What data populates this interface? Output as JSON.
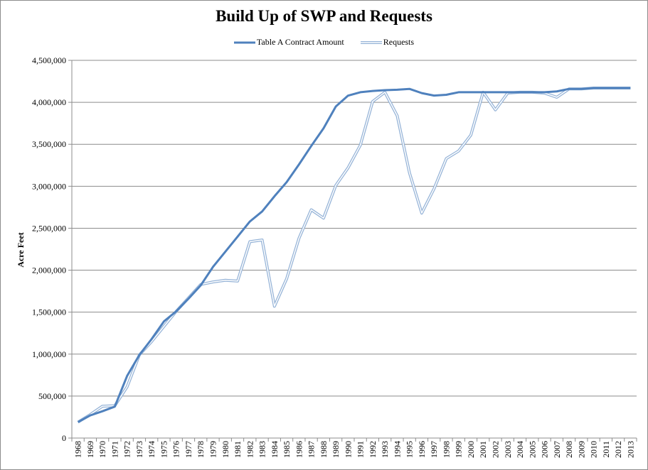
{
  "chart_data": {
    "type": "line",
    "title": "Build Up of SWP and Requests",
    "ylabel": "Acre Feet",
    "xlabel": "",
    "ylim": [
      0,
      4500000
    ],
    "yticks": [
      0,
      500000,
      1000000,
      1500000,
      2000000,
      2500000,
      3000000,
      3500000,
      4000000,
      4500000
    ],
    "ytick_labels": [
      "0",
      "500,000",
      "1,000,000",
      "1,500,000",
      "2,000,000",
      "2,500,000",
      "3,000,000",
      "3,500,000",
      "4,000,000",
      "4,500,000"
    ],
    "grid": true,
    "legend": "top-center",
    "x": [
      "1968",
      "1969",
      "1970",
      "1971",
      "1972",
      "1973",
      "1974",
      "1975",
      "1976",
      "1977",
      "1978",
      "1979",
      "1980",
      "1981",
      "1982",
      "1983",
      "1984",
      "1985",
      "1986",
      "1987",
      "1988",
      "1989",
      "1990",
      "1991",
      "1992",
      "1993",
      "1994",
      "1995",
      "1996",
      "1997",
      "1998",
      "1999",
      "2000",
      "2001",
      "2002",
      "2003",
      "2004",
      "2005",
      "2006",
      "2007",
      "2008",
      "2009",
      "2010",
      "2011",
      "2012",
      "2013"
    ],
    "series": [
      {
        "name": "Table A Contract Amount",
        "color": "#4f81bd",
        "style": "solid",
        "values": [
          190000,
          270000,
          320000,
          375000,
          740000,
          990000,
          1180000,
          1390000,
          1510000,
          1660000,
          1820000,
          2040000,
          2220000,
          2400000,
          2580000,
          2700000,
          2880000,
          3050000,
          3260000,
          3480000,
          3690000,
          3950000,
          4080000,
          4120000,
          4135000,
          4145000,
          4150000,
          4160000,
          4110000,
          4080000,
          4090000,
          4120000,
          4120000,
          4120000,
          4120000,
          4120000,
          4120000,
          4120000,
          4120000,
          4130000,
          4160000,
          4160000,
          4170000,
          4170000,
          4170000,
          4170000
        ]
      },
      {
        "name": "Requests",
        "color": "#95b3d7",
        "style": "double",
        "values": [
          190000,
          280000,
          380000,
          385000,
          610000,
          990000,
          1150000,
          1330000,
          1510000,
          1670000,
          1830000,
          1860000,
          1880000,
          1870000,
          2340000,
          2360000,
          1570000,
          1900000,
          2380000,
          2720000,
          2620000,
          3010000,
          3220000,
          3490000,
          4010000,
          4120000,
          3840000,
          3160000,
          2680000,
          2970000,
          3330000,
          3420000,
          3610000,
          4120000,
          3910000,
          4110000,
          4120000,
          4120000,
          4110000,
          4060000,
          4160000,
          4160000,
          4170000,
          4170000,
          4170000,
          4170000
        ]
      }
    ]
  }
}
